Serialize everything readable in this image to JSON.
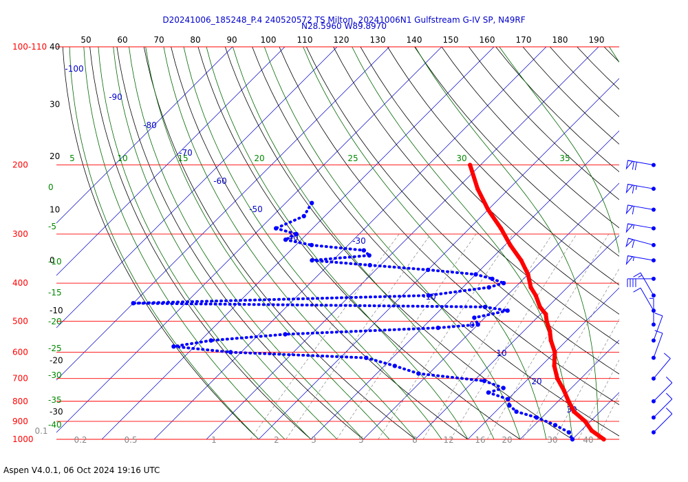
{
  "title_line1": "D20241006_185248_P.4 240520572 TS Milton, 20241006N1 Gulfstream G-IV SP, N49RF",
  "title_line2": "N28.5960 W89.8970",
  "footer": "Aspen V4.0.1, 06 Oct 2024  19:16 UTC",
  "colors": {
    "pressure": "#ff0000",
    "temp_line": "#0000cc",
    "theta": "#000000",
    "moist": "#006600",
    "mixing": "#888888",
    "dewpoint": "#0000ff",
    "temperature": "#ff0000"
  },
  "chart_data": {
    "type": "skew-t",
    "pressure_levels": [
      {
        "p": 100,
        "label": "100-110"
      },
      {
        "p": 200,
        "label": "200"
      },
      {
        "p": 300,
        "label": "300"
      },
      {
        "p": 400,
        "label": "400"
      },
      {
        "p": 500,
        "label": "500"
      },
      {
        "p": 600,
        "label": "600"
      },
      {
        "p": 700,
        "label": "700"
      },
      {
        "p": 800,
        "label": "800"
      },
      {
        "p": 900,
        "label": "900"
      },
      {
        "p": 1000,
        "label": "1000"
      }
    ],
    "theta_labels": [
      "50",
      "60",
      "70",
      "80",
      "90",
      "100",
      "110",
      "120",
      "130",
      "140",
      "150",
      "160",
      "170",
      "180",
      "190"
    ],
    "left_axis_labels": [
      "40",
      "30",
      "20",
      "10",
      "0",
      "-10",
      "-20",
      "-30"
    ],
    "moist_labels": [
      "5",
      "10",
      "15",
      "20",
      "25",
      "30",
      "35"
    ],
    "moist_left_labels": [
      "0",
      "-5",
      "-10",
      "-15",
      "-20",
      "-25",
      "-30",
      "-35",
      "-40"
    ],
    "isotherm_labels": [
      "-100",
      "-90",
      "-80",
      "-70",
      "-60",
      "-50",
      "-40",
      "-30",
      "-10",
      "0",
      "10",
      "20",
      "30"
    ],
    "mixing_labels": [
      "0.1",
      "0.2",
      "0.5",
      "1",
      "2",
      "3",
      "5",
      "8",
      "12",
      "16",
      "20",
      "30",
      "40"
    ],
    "temperature": [
      {
        "p": 200,
        "t": -52.0
      },
      {
        "p": 230,
        "t": -46.0
      },
      {
        "p": 260,
        "t": -40.0
      },
      {
        "p": 290,
        "t": -34.0
      },
      {
        "p": 320,
        "t": -29.0
      },
      {
        "p": 350,
        "t": -24.0
      },
      {
        "p": 380,
        "t": -20.0
      },
      {
        "p": 410,
        "t": -17.0
      },
      {
        "p": 430,
        "t": -14.5
      },
      {
        "p": 460,
        "t": -11.5
      },
      {
        "p": 480,
        "t": -9.0
      },
      {
        "p": 500,
        "t": -7.5
      },
      {
        "p": 530,
        "t": -5.0
      },
      {
        "p": 560,
        "t": -3.0
      },
      {
        "p": 600,
        "t": 0.0
      },
      {
        "p": 650,
        "t": 2.5
      },
      {
        "p": 700,
        "t": 5.5
      },
      {
        "p": 750,
        "t": 9.0
      },
      {
        "p": 800,
        "t": 12.0
      },
      {
        "p": 850,
        "t": 15.0
      },
      {
        "p": 900,
        "t": 19.0
      },
      {
        "p": 950,
        "t": 22.0
      },
      {
        "p": 1000,
        "t": 26.0
      }
    ],
    "dewpoint": [
      {
        "p": 250,
        "t": -75.0
      },
      {
        "p": 270,
        "t": -74.0
      },
      {
        "p": 290,
        "t": -77.0
      },
      {
        "p": 300,
        "t": -72.0
      },
      {
        "p": 310,
        "t": -73.0
      },
      {
        "p": 320,
        "t": -67.0
      },
      {
        "p": 330,
        "t": -56.0
      },
      {
        "p": 340,
        "t": -54.0
      },
      {
        "p": 350,
        "t": -64.0
      },
      {
        "p": 360,
        "t": -52.0
      },
      {
        "p": 370,
        "t": -40.0
      },
      {
        "p": 380,
        "t": -30.0
      },
      {
        "p": 390,
        "t": -26.0
      },
      {
        "p": 400,
        "t": -23.0
      },
      {
        "p": 410,
        "t": -25.0
      },
      {
        "p": 430,
        "t": -35.0
      },
      {
        "p": 450,
        "t": -90.0
      },
      {
        "p": 460,
        "t": -22.0
      },
      {
        "p": 470,
        "t": -17.0
      },
      {
        "p": 490,
        "t": -22.0
      },
      {
        "p": 510,
        "t": -20.0
      },
      {
        "p": 520,
        "t": -27.0
      },
      {
        "p": 540,
        "t": -55.0
      },
      {
        "p": 560,
        "t": -68.0
      },
      {
        "p": 580,
        "t": -74.0
      },
      {
        "p": 600,
        "t": -62.0
      },
      {
        "p": 620,
        "t": -35.0
      },
      {
        "p": 650,
        "t": -28.0
      },
      {
        "p": 680,
        "t": -22.0
      },
      {
        "p": 710,
        "t": -8.0
      },
      {
        "p": 740,
        "t": -3.0
      },
      {
        "p": 760,
        "t": -5.0
      },
      {
        "p": 790,
        "t": 0.0
      },
      {
        "p": 820,
        "t": 1.5
      },
      {
        "p": 850,
        "t": 4.0
      },
      {
        "p": 880,
        "t": 9.0
      },
      {
        "p": 920,
        "t": 14.0
      },
      {
        "p": 960,
        "t": 18.0
      },
      {
        "p": 1000,
        "t": 20.0
      }
    ],
    "wind_barbs": [
      {
        "p": 200,
        "dir": 280,
        "speed": 70
      },
      {
        "p": 230,
        "dir": 280,
        "speed": 65
      },
      {
        "p": 260,
        "dir": 280,
        "speed": 60
      },
      {
        "p": 290,
        "dir": 280,
        "speed": 55
      },
      {
        "p": 320,
        "dir": 285,
        "speed": 60
      },
      {
        "p": 350,
        "dir": 280,
        "speed": 55
      },
      {
        "p": 390,
        "dir": 270,
        "speed": 40
      },
      {
        "p": 430,
        "dir": 330,
        "speed": 15
      },
      {
        "p": 470,
        "dir": 330,
        "speed": 10
      },
      {
        "p": 510,
        "dir": 360,
        "speed": 5
      },
      {
        "p": 560,
        "dir": 20,
        "speed": 10
      },
      {
        "p": 620,
        "dir": 20,
        "speed": 10
      },
      {
        "p": 700,
        "dir": 40,
        "speed": 10
      },
      {
        "p": 800,
        "dir": 45,
        "speed": 10
      },
      {
        "p": 880,
        "dir": 45,
        "speed": 10
      },
      {
        "p": 960,
        "dir": 45,
        "speed": 10
      }
    ]
  }
}
